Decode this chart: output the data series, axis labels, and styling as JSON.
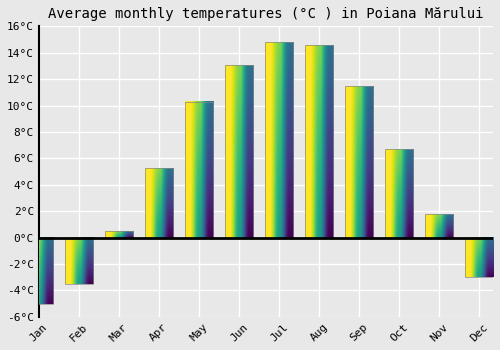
{
  "months": [
    "Jan",
    "Feb",
    "Mar",
    "Apr",
    "May",
    "Jun",
    "Jul",
    "Aug",
    "Sep",
    "Oct",
    "Nov",
    "Dec"
  ],
  "values": [
    -5.0,
    -3.5,
    0.5,
    5.3,
    10.3,
    13.1,
    14.8,
    14.6,
    11.5,
    6.7,
    1.8,
    -3.0
  ],
  "bar_color_top": "#FFD060",
  "bar_color_bottom": "#FF8C00",
  "bar_edge_color": "#888888",
  "title": "Average monthly temperatures (°C ) in Poiana Mărului",
  "ylim": [
    -6,
    16
  ],
  "yticks": [
    -6,
    -4,
    -2,
    0,
    2,
    4,
    6,
    8,
    10,
    12,
    14,
    16
  ],
  "background_color": "#e8e8e8",
  "grid_color": "#ffffff",
  "title_fontsize": 10,
  "axis_fontsize": 8
}
